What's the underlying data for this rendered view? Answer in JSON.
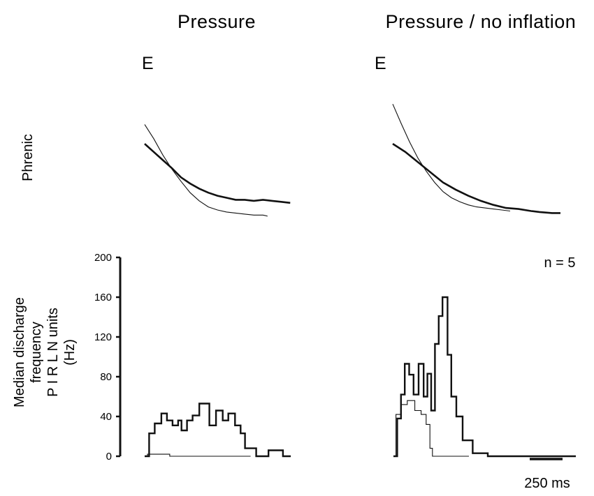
{
  "chart_data": [
    {
      "type": "line",
      "title": "Pressure",
      "phase_label": "E",
      "ylabel": "Phrenic",
      "series": [
        {
          "style": "thick",
          "points": [
            [
              0,
              0.78
            ],
            [
              20,
              0.7
            ],
            [
              40,
              0.62
            ],
            [
              60,
              0.54
            ],
            [
              80,
              0.45
            ],
            [
              100,
              0.39
            ],
            [
              120,
              0.34
            ],
            [
              140,
              0.3
            ],
            [
              160,
              0.27
            ],
            [
              180,
              0.25
            ],
            [
              200,
              0.23
            ],
            [
              220,
              0.23
            ],
            [
              240,
              0.22
            ],
            [
              260,
              0.23
            ],
            [
              280,
              0.22
            ],
            [
              300,
              0.21
            ],
            [
              320,
              0.2
            ]
          ]
        },
        {
          "style": "thin",
          "points": [
            [
              0,
              0.97
            ],
            [
              20,
              0.83
            ],
            [
              40,
              0.67
            ],
            [
              60,
              0.53
            ],
            [
              80,
              0.41
            ],
            [
              100,
              0.3
            ],
            [
              120,
              0.22
            ],
            [
              140,
              0.16
            ],
            [
              160,
              0.13
            ],
            [
              180,
              0.11
            ],
            [
              200,
              0.1
            ],
            [
              220,
              0.09
            ],
            [
              240,
              0.08
            ],
            [
              260,
              0.08
            ],
            [
              270,
              0.07
            ]
          ]
        }
      ]
    },
    {
      "type": "line",
      "title": "Pressure / no inflation",
      "phase_label": "E",
      "series": [
        {
          "style": "thick",
          "points": [
            [
              0,
              0.78
            ],
            [
              30,
              0.7
            ],
            [
              60,
              0.6
            ],
            [
              90,
              0.5
            ],
            [
              120,
              0.4
            ],
            [
              150,
              0.33
            ],
            [
              180,
              0.27
            ],
            [
              210,
              0.22
            ],
            [
              240,
              0.18
            ],
            [
              270,
              0.15
            ],
            [
              300,
              0.14
            ],
            [
              330,
              0.12
            ],
            [
              350,
              0.11
            ],
            [
              380,
              0.1
            ],
            [
              400,
              0.1
            ]
          ]
        },
        {
          "style": "thin",
          "points": [
            [
              0,
              1.17
            ],
            [
              20,
              0.98
            ],
            [
              40,
              0.8
            ],
            [
              60,
              0.64
            ],
            [
              80,
              0.51
            ],
            [
              100,
              0.4
            ],
            [
              120,
              0.31
            ],
            [
              140,
              0.25
            ],
            [
              160,
              0.21
            ],
            [
              180,
              0.18
            ],
            [
              200,
              0.16
            ],
            [
              220,
              0.15
            ],
            [
              240,
              0.14
            ],
            [
              260,
              0.13
            ],
            [
              280,
              0.12
            ]
          ]
        }
      ]
    },
    {
      "type": "line",
      "step": true,
      "ylabel": "Median discharge\nfrequency\nP I R L N units\n(Hz)",
      "ylim": [
        0,
        200
      ],
      "yticks": [
        0,
        40,
        80,
        120,
        160,
        200
      ],
      "series": [
        {
          "style": "thick",
          "points": [
            [
              0,
              0
            ],
            [
              8,
              23
            ],
            [
              18,
              33
            ],
            [
              30,
              43
            ],
            [
              40,
              36
            ],
            [
              50,
              31
            ],
            [
              60,
              36
            ],
            [
              66,
              26
            ],
            [
              76,
              36
            ],
            [
              86,
              41
            ],
            [
              98,
              53
            ],
            [
              116,
              31
            ],
            [
              128,
              46
            ],
            [
              140,
              36
            ],
            [
              150,
              43
            ],
            [
              162,
              31
            ],
            [
              172,
              23
            ],
            [
              180,
              8
            ],
            [
              200,
              0
            ],
            [
              222,
              6
            ],
            [
              248,
              0
            ],
            [
              262,
              0
            ]
          ]
        },
        {
          "style": "thin",
          "points": [
            [
              0,
              0
            ],
            [
              5,
              2
            ],
            [
              45,
              0
            ],
            [
              190,
              0
            ]
          ]
        }
      ]
    },
    {
      "type": "line",
      "step": true,
      "annotation": "n = 5",
      "scale_bar_label": "250 ms",
      "ylim": [
        0,
        200
      ],
      "series": [
        {
          "style": "thick",
          "points": [
            [
              0,
              0
            ],
            [
              6,
              38
            ],
            [
              12,
              62
            ],
            [
              18,
              93
            ],
            [
              25,
              82
            ],
            [
              32,
              62
            ],
            [
              40,
              93
            ],
            [
              48,
              60
            ],
            [
              54,
              83
            ],
            [
              60,
              46
            ],
            [
              66,
              113
            ],
            [
              72,
              141
            ],
            [
              78,
              160
            ],
            [
              86,
              102
            ],
            [
              92,
              60
            ],
            [
              100,
              40
            ],
            [
              110,
              16
            ],
            [
              126,
              3
            ],
            [
              150,
              0
            ],
            [
              290,
              0
            ]
          ]
        },
        {
          "style": "thin",
          "points": [
            [
              0,
              0
            ],
            [
              4,
              42
            ],
            [
              12,
              52
            ],
            [
              22,
              56
            ],
            [
              34,
              46
            ],
            [
              44,
              42
            ],
            [
              52,
              32
            ],
            [
              58,
              8
            ],
            [
              62,
              0
            ],
            [
              120,
              0
            ]
          ]
        }
      ]
    }
  ]
}
